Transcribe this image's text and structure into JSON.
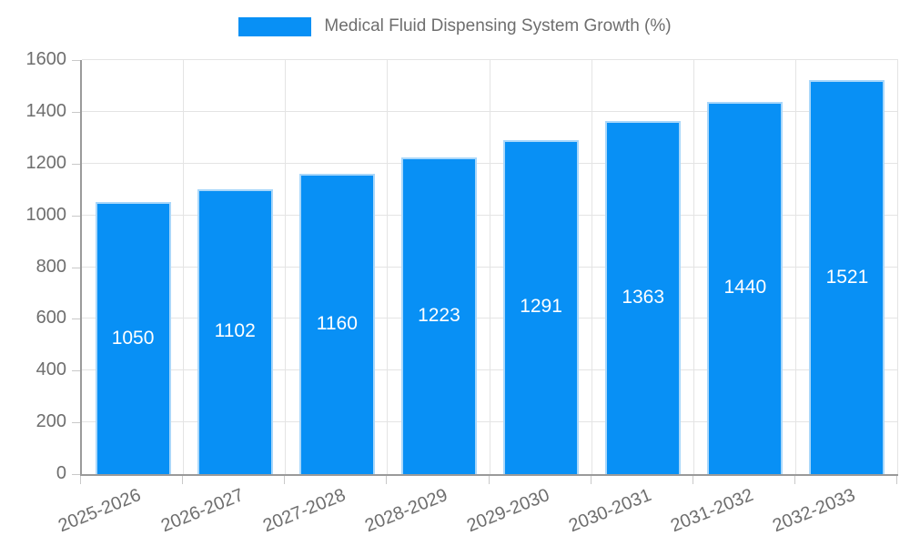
{
  "legend": {
    "label": "Medical Fluid Dispensing System Growth (%)",
    "swatch_color": "#0890f5"
  },
  "chart_data": {
    "type": "bar",
    "title": "Medical Fluid Dispensing System Growth (%)",
    "categories": [
      "2025-2026",
      "2026-2027",
      "2027-2028",
      "2028-2029",
      "2029-2030",
      "2030-2031",
      "2031-2032",
      "2032-2033"
    ],
    "values": [
      1050,
      1102,
      1160,
      1223,
      1291,
      1363,
      1440,
      1521
    ],
    "bar_labels": [
      "1050",
      "1102",
      "1160",
      "1223",
      "1291",
      "1363",
      "1440",
      "1521"
    ],
    "xlabel": "",
    "ylabel": "",
    "ylim": [
      0,
      1600
    ],
    "ytick_step": 200,
    "ytick_labels": [
      "0",
      "200",
      "400",
      "600",
      "800",
      "1000",
      "1200",
      "1400",
      "1600"
    ],
    "grid": true,
    "legend_position": "top",
    "bar_color": "#0890f5",
    "bar_border_color": "#a9d7fa",
    "value_label_color": "#ffffff",
    "axis_color": "#9a9a9a",
    "gridline_color": "#e4e4e4",
    "tick_text_color": "#6e6e6e"
  }
}
